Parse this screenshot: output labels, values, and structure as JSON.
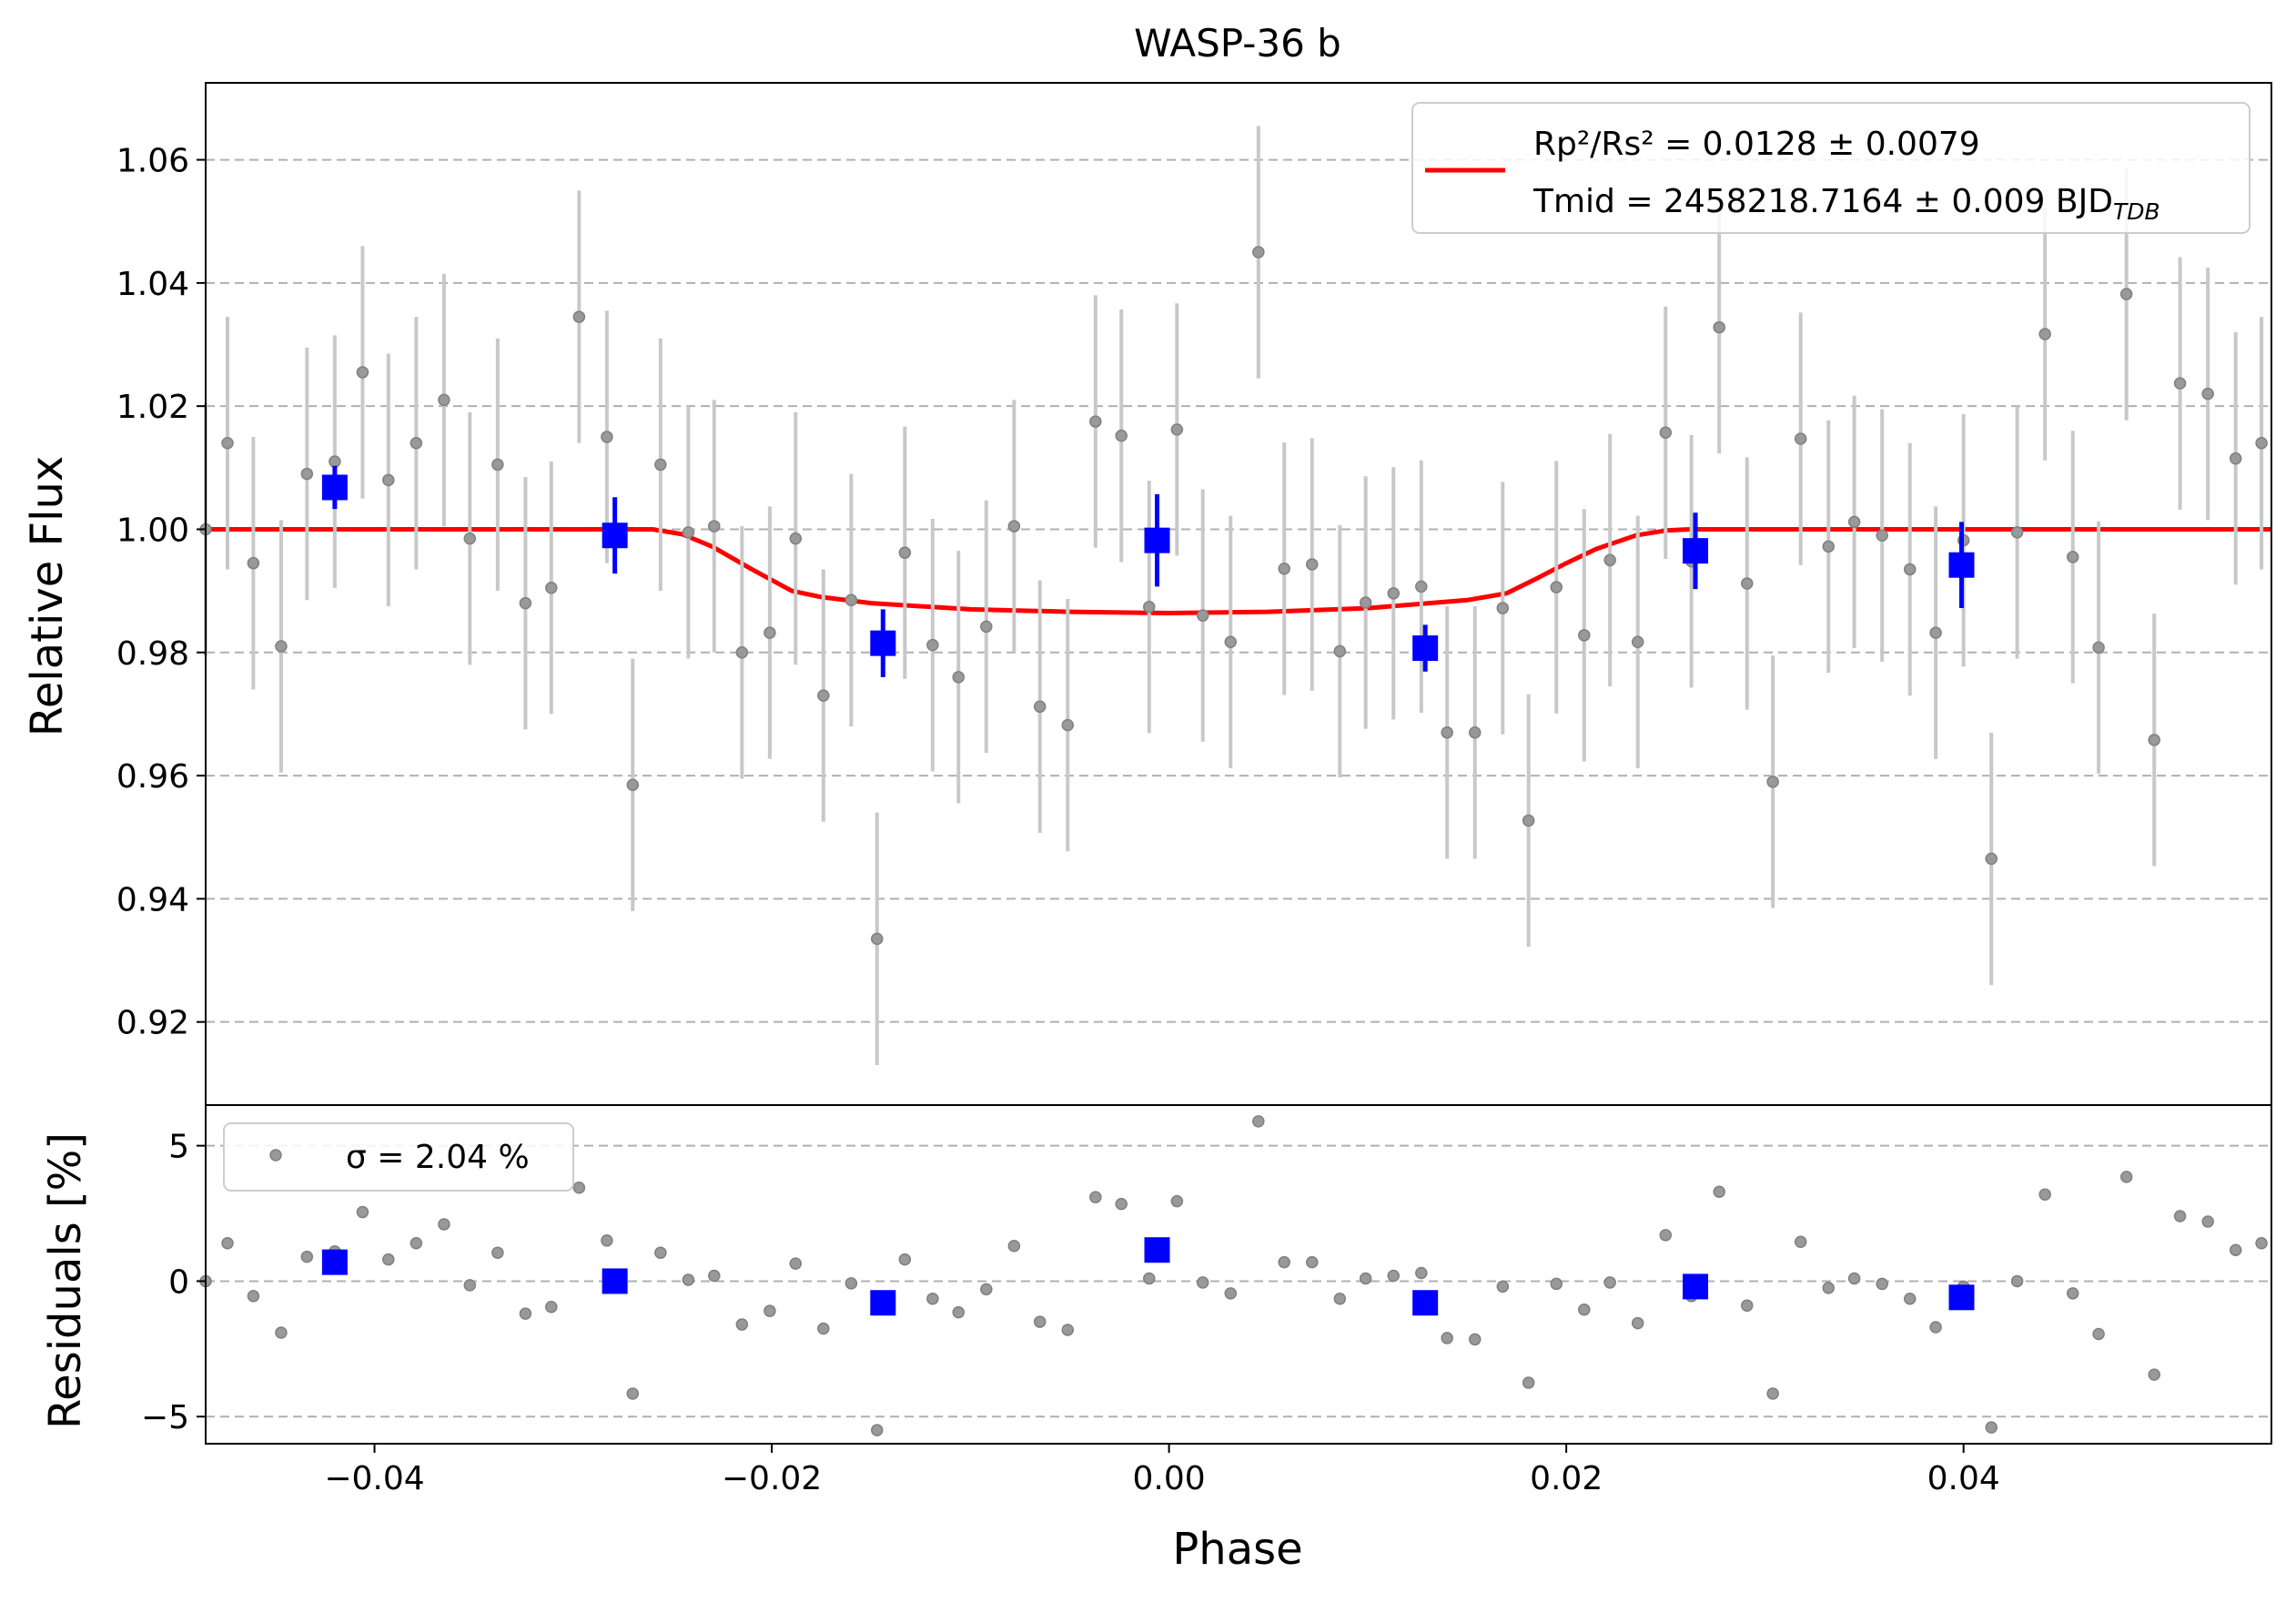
{
  "chart_data": [
    {
      "type": "scatter",
      "title": "WASP-36 b",
      "xlabel": "",
      "ylabel": "Relative Flux",
      "xlim": [
        -0.0485,
        0.0555
      ],
      "ylim": [
        0.9065,
        1.0725
      ],
      "yticks": [
        0.92,
        0.94,
        0.96,
        0.98,
        1.0,
        1.02,
        1.04,
        1.06
      ],
      "ytick_labels": [
        "0.92",
        "0.94",
        "0.96",
        "0.98",
        "1.00",
        "1.02",
        "1.04",
        "1.06"
      ],
      "grid": "horizontal dashed",
      "legend": {
        "placement": "top-right",
        "line1": "Rp²/Rs² = 0.0128 ± 0.0079",
        "line2": "Tmid = 2458218.7164 ± 0.009 BJD",
        "line2_sub": "TDB"
      },
      "series": [
        {
          "kind": "raw points with error bars",
          "color": "#808080",
          "x": [
            -0.0485,
            -0.0474,
            -0.0461,
            -0.0447,
            -0.0434,
            -0.042,
            -0.0406,
            -0.0393,
            -0.0379,
            -0.0365,
            -0.0352,
            -0.0338,
            -0.0324,
            -0.0311,
            -0.0297,
            -0.0283,
            -0.027,
            -0.0256,
            -0.0242,
            -0.0229,
            -0.0215,
            -0.0201,
            -0.0188,
            -0.0174,
            -0.016,
            -0.0147,
            -0.0133,
            -0.0119,
            -0.0106,
            -0.0092,
            -0.0078,
            -0.0065,
            -0.0051,
            -0.0037,
            -0.0024,
            -0.001,
            0.0004,
            0.0017,
            0.0031,
            0.0045,
            0.0058,
            0.0072,
            0.0086,
            0.0099,
            0.0113,
            0.0127,
            0.014,
            0.0154,
            0.0168,
            0.0181,
            0.0195,
            0.0209,
            0.0222,
            0.0236,
            0.025,
            0.0263,
            0.0277,
            0.0291,
            0.0304,
            0.0318,
            0.0332,
            0.0345,
            0.0359,
            0.0373,
            0.0386,
            0.04,
            0.0414,
            0.0427,
            0.0441,
            0.0455,
            0.0468,
            0.0482,
            0.0496,
            0.0509,
            0.0523,
            0.0537,
            0.055
          ],
          "y": [
            1.0,
            1.014,
            0.9945,
            0.981,
            1.009,
            1.011,
            1.0255,
            1.008,
            1.014,
            1.021,
            0.9985,
            1.0105,
            0.988,
            0.9905,
            1.0345,
            1.015,
            0.9585,
            1.0105,
            0.9995,
            1.0005,
            0.98,
            0.9832,
            0.9985,
            0.973,
            0.9885,
            0.9335,
            0.9962,
            0.9812,
            0.976,
            0.9842,
            1.0005,
            0.9712,
            0.9682,
            1.0175,
            1.0152,
            0.9874,
            1.0162,
            0.986,
            0.9817,
            1.045,
            0.9936,
            0.9943,
            0.9802,
            0.9881,
            0.9896,
            0.9907,
            0.967,
            0.967,
            0.9872,
            0.9527,
            0.9906,
            0.9828,
            0.995,
            0.9817,
            1.0157,
            0.9948,
            1.0328,
            0.9912,
            0.959,
            1.0147,
            0.9972,
            1.0012,
            0.999,
            0.9935,
            0.9832,
            0.9982,
            0.9465,
            0.9995,
            1.0317,
            0.9955,
            0.9808,
            1.0382,
            0.9658,
            1.0237,
            1.022,
            1.0115,
            1.014
          ],
          "yerr": 0.0205
        },
        {
          "kind": "binned points",
          "color": "#0000ff",
          "x": [
            -0.042,
            -0.0279,
            -0.0144,
            -0.0006,
            0.0129,
            0.0265,
            0.0399
          ],
          "y": [
            1.0068,
            0.999,
            0.9815,
            0.9982,
            0.9807,
            0.9965,
            0.9942
          ],
          "yerr": [
            0.0035,
            0.0062,
            0.0055,
            0.0075,
            0.0038,
            0.0062,
            0.007
          ]
        },
        {
          "kind": "transit model",
          "color": "#ff0000",
          "x": [
            -0.0485,
            -0.026,
            -0.0245,
            -0.023,
            -0.021,
            -0.019,
            -0.0175,
            -0.015,
            -0.01,
            -0.005,
            0.0,
            0.005,
            0.01,
            0.015,
            0.017,
            0.0185,
            0.02,
            0.0215,
            0.0235,
            0.025,
            0.0262,
            0.0555
          ],
          "y": [
            1.0,
            1.0,
            0.9992,
            0.9972,
            0.9935,
            0.99,
            0.989,
            0.988,
            0.987,
            0.9866,
            0.9864,
            0.9866,
            0.9872,
            0.9885,
            0.9896,
            0.992,
            0.9945,
            0.9968,
            0.999,
            0.9998,
            1.0,
            1.0
          ]
        }
      ]
    },
    {
      "type": "scatter",
      "title": "",
      "xlabel": "Phase",
      "ylabel": "Residuals [%]",
      "xlim": [
        -0.0485,
        0.0555
      ],
      "ylim": [
        -6.0,
        6.5
      ],
      "yticks": [
        -5,
        0,
        5
      ],
      "ytick_labels": [
        "−5",
        "0",
        "5"
      ],
      "xticks": [
        -0.04,
        -0.02,
        0.0,
        0.02,
        0.04
      ],
      "xtick_labels": [
        "−0.04",
        "−0.02",
        "0.00",
        "0.02",
        "0.04"
      ],
      "grid": "horizontal dashed",
      "legend": {
        "placement": "top-left",
        "label": "σ = 2.04 %"
      },
      "series": [
        {
          "kind": "raw residuals",
          "color": "#808080",
          "x": [
            -0.0485,
            -0.0474,
            -0.0461,
            -0.0447,
            -0.0434,
            -0.042,
            -0.0406,
            -0.0393,
            -0.0379,
            -0.0365,
            -0.0352,
            -0.0338,
            -0.0324,
            -0.0311,
            -0.0297,
            -0.0283,
            -0.027,
            -0.0256,
            -0.0242,
            -0.0229,
            -0.0215,
            -0.0201,
            -0.0188,
            -0.0174,
            -0.016,
            -0.0147,
            -0.0133,
            -0.0119,
            -0.0106,
            -0.0092,
            -0.0078,
            -0.0065,
            -0.0051,
            -0.0037,
            -0.0024,
            -0.001,
            0.0004,
            0.0017,
            0.0031,
            0.0045,
            0.0058,
            0.0072,
            0.0086,
            0.0099,
            0.0113,
            0.0127,
            0.014,
            0.0154,
            0.0168,
            0.0181,
            0.0195,
            0.0209,
            0.0222,
            0.0236,
            0.025,
            0.0263,
            0.0277,
            0.0291,
            0.0304,
            0.0318,
            0.0332,
            0.0345,
            0.0359,
            0.0373,
            0.0386,
            0.04,
            0.0414,
            0.0427,
            0.0441,
            0.0455,
            0.0468,
            0.0482,
            0.0496,
            0.0509,
            0.0523,
            0.0537,
            0.055
          ],
          "y": [
            0.0,
            1.4,
            -0.55,
            -1.9,
            0.9,
            1.1,
            2.55,
            0.8,
            1.4,
            2.1,
            -0.15,
            1.05,
            -1.2,
            -0.95,
            3.45,
            1.5,
            -4.15,
            1.05,
            0.05,
            0.2,
            -1.6,
            -1.1,
            0.65,
            -1.75,
            -0.08,
            -5.5,
            0.8,
            -0.65,
            -1.15,
            -0.3,
            1.3,
            -1.5,
            -1.8,
            3.1,
            2.85,
            0.1,
            2.95,
            -0.05,
            -0.45,
            5.9,
            0.7,
            0.7,
            -0.65,
            0.1,
            0.2,
            0.3,
            -2.1,
            -2.15,
            -0.2,
            -3.75,
            -0.1,
            -1.05,
            -0.05,
            -1.55,
            1.7,
            -0.55,
            3.3,
            -0.9,
            -4.15,
            1.45,
            -0.25,
            0.1,
            -0.1,
            -0.65,
            -1.7,
            -0.2,
            -5.4,
            0.0,
            3.2,
            -0.45,
            -1.95,
            3.85,
            -3.45,
            2.4,
            2.2,
            1.15,
            1.4
          ]
        },
        {
          "kind": "binned residuals",
          "color": "#0000ff",
          "x": [
            -0.042,
            -0.0279,
            -0.0144,
            -0.0006,
            0.0129,
            0.0265,
            0.0399
          ],
          "y": [
            0.7,
            0.0,
            -0.8,
            1.15,
            -0.8,
            -0.2,
            -0.6
          ]
        }
      ]
    }
  ]
}
